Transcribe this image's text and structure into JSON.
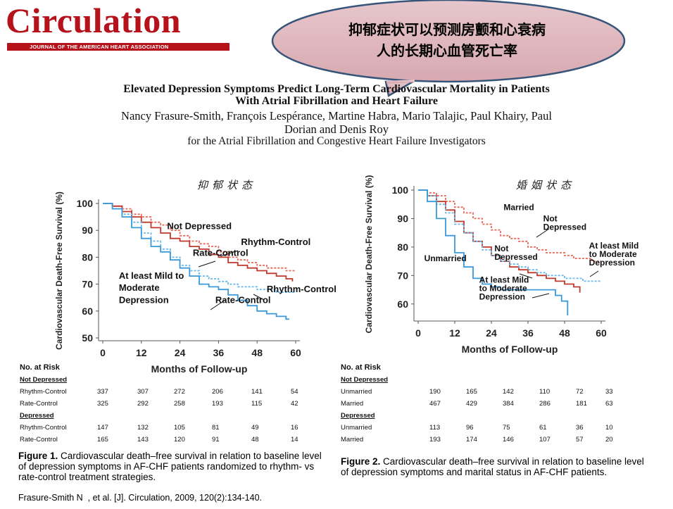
{
  "logo": {
    "word": "Circulation",
    "tagline": "JOURNAL OF THE AMERICAN HEART ASSOCIATION"
  },
  "bubble": {
    "line1": "抑郁症状可以预测房颤和心衰病",
    "line2": "人的长期心血管死亡率"
  },
  "paper": {
    "title_line1": "Elevated Depression Symptoms Predict Long-Term Cardiovascular Mortality in Patients",
    "title_line2": "With Atrial Fibrillation and Heart Failure",
    "authors_line1": "Nancy Frasure-Smith, François Lespérance, Martine Habra, Mario Talajic, Paul Khairy, Paul",
    "authors_line2": "Dorian and Denis Roy",
    "group": "for the Atrial Fibrillation and Congestive Heart Failure Investigators"
  },
  "notes": {
    "left": "抑郁状态",
    "right": "婚姻状态"
  },
  "colors": {
    "red": "#c0392b",
    "red_light": "#e8695a",
    "blue": "#3a9ad9",
    "blue_light": "#6ab8ea",
    "logo_red": "#b5121b"
  },
  "chart_data": [
    {
      "type": "line",
      "title": "Figure 1",
      "xlabel": "Months of Follow-up",
      "ylabel": "Cardiovascular Death-Free Survival (%)",
      "xlim": [
        0,
        60
      ],
      "ylim": [
        50,
        100
      ],
      "xticks": [
        0,
        12,
        24,
        36,
        48,
        60
      ],
      "yticks": [
        50,
        60,
        70,
        80,
        90,
        100
      ],
      "series": [
        {
          "name": "Not Depressed, Rhythm-Control",
          "color": "red_light",
          "dash": true,
          "x": [
            0,
            3,
            6,
            9,
            12,
            15,
            18,
            21,
            24,
            27,
            30,
            33,
            36,
            39,
            42,
            45,
            48,
            51,
            54,
            57,
            60
          ],
          "y": [
            100,
            99,
            98,
            96,
            95,
            93,
            92,
            90,
            88,
            86,
            85,
            84,
            82,
            80,
            79,
            78,
            77,
            76,
            76,
            75,
            75
          ]
        },
        {
          "name": "Not Depressed, Rate-Control",
          "color": "red",
          "dash": false,
          "x": [
            0,
            3,
            6,
            9,
            12,
            15,
            18,
            21,
            24,
            27,
            30,
            33,
            36,
            39,
            42,
            45,
            48,
            51,
            54,
            57,
            59
          ],
          "y": [
            100,
            99,
            97,
            95,
            93,
            91,
            89,
            87,
            86,
            84,
            83,
            81,
            80,
            78,
            77,
            76,
            75,
            74,
            73,
            72,
            71
          ]
        },
        {
          "name": "Depressed, Rhythm-Control",
          "color": "blue_light",
          "dash": true,
          "x": [
            0,
            3,
            6,
            9,
            12,
            15,
            18,
            21,
            24,
            27,
            30,
            33,
            36,
            39,
            42,
            45,
            48,
            51,
            54,
            57,
            60
          ],
          "y": [
            100,
            98,
            96,
            93,
            89,
            86,
            83,
            80,
            77,
            75,
            73,
            72,
            71,
            70,
            69,
            69,
            68,
            68,
            67,
            67,
            67
          ]
        },
        {
          "name": "Depressed, Rate-Control",
          "color": "blue",
          "dash": false,
          "x": [
            0,
            3,
            6,
            9,
            12,
            15,
            18,
            21,
            24,
            27,
            30,
            33,
            36,
            39,
            42,
            45,
            48,
            51,
            54,
            57,
            58
          ],
          "y": [
            100,
            98,
            95,
            91,
            87,
            84,
            82,
            79,
            76,
            73,
            70,
            69,
            68,
            66,
            64,
            62,
            60,
            59,
            58,
            57,
            57
          ]
        }
      ],
      "annotations": [
        {
          "text": "Not Depressed",
          "x": 20,
          "y": 90.5
        },
        {
          "text": "Rhythm-Control",
          "x": 43,
          "y": 84.5
        },
        {
          "text": "Rate-Control",
          "x": 28,
          "y": 80.5
        },
        {
          "text": "At least Mild to",
          "x": 5,
          "y": 72
        },
        {
          "text": "Moderate",
          "x": 5,
          "y": 67.5
        },
        {
          "text": "Depression",
          "x": 5,
          "y": 63
        },
        {
          "text": "Rhythm-Control",
          "x": 51,
          "y": 67
        },
        {
          "text": "Rate-Control",
          "x": 35,
          "y": 63
        }
      ],
      "risk_table": {
        "header": "No. at Risk",
        "groups": [
          {
            "name": "Not Depressed",
            "rows": [
              {
                "label": "Rhythm-Control",
                "values": [
                  "337",
                  "307",
                  "272",
                  "206",
                  "141",
                  "54"
                ]
              },
              {
                "label": "Rate-Control",
                "values": [
                  "325",
                  "292",
                  "258",
                  "193",
                  "115",
                  "42"
                ]
              }
            ]
          },
          {
            "name": "Depressed",
            "rows": [
              {
                "label": "Rhythm-Control",
                "values": [
                  "147",
                  "132",
                  "105",
                  "81",
                  "49",
                  "16"
                ]
              },
              {
                "label": "Rate-Control",
                "values": [
                  "165",
                  "143",
                  "120",
                  "91",
                  "48",
                  "14"
                ]
              }
            ]
          }
        ]
      },
      "caption_bold": "Figure 1.",
      "caption": "Cardiovascular death–free survival in relation to baseline level of depression symptoms in AF-CHF patients randomized to rhythm- vs rate-control treatment strategies."
    },
    {
      "type": "line",
      "title": "Figure 2",
      "xlabel": "Months of Follow-up",
      "ylabel": "Cardiovascular Death-Free Survival (%)",
      "xlim": [
        0,
        60
      ],
      "ylim": [
        55,
        100
      ],
      "xticks": [
        0,
        12,
        24,
        36,
        48,
        60
      ],
      "yticks": [
        60,
        70,
        80,
        90,
        100
      ],
      "series": [
        {
          "name": "Married, Not Depressed",
          "color": "red_light",
          "dash": true,
          "x": [
            0,
            3,
            6,
            9,
            12,
            15,
            18,
            21,
            24,
            27,
            30,
            33,
            36,
            39,
            42,
            45,
            48,
            51,
            54,
            57,
            60
          ],
          "y": [
            100,
            99,
            98,
            96,
            94,
            92,
            90,
            88,
            86,
            84,
            83,
            82,
            80,
            79,
            78,
            78,
            77,
            76,
            76,
            75,
            75
          ]
        },
        {
          "name": "Married, Depressed",
          "color": "red",
          "dash": false,
          "x": [
            0,
            3,
            6,
            9,
            12,
            15,
            18,
            21,
            24,
            27,
            30,
            33,
            36,
            39,
            42,
            45,
            48,
            51,
            53
          ],
          "y": [
            100,
            98,
            96,
            93,
            89,
            85,
            82,
            80,
            77,
            75,
            73,
            72,
            71,
            70,
            69,
            68,
            67,
            66,
            64
          ]
        },
        {
          "name": "Unmarried, Not Depressed",
          "color": "blue_light",
          "dash": true,
          "x": [
            0,
            3,
            6,
            9,
            12,
            15,
            18,
            21,
            24,
            27,
            30,
            33,
            36,
            39,
            42,
            45,
            48,
            51,
            54,
            57,
            60
          ],
          "y": [
            100,
            98,
            95,
            92,
            88,
            85,
            82,
            79,
            77,
            75,
            74,
            73,
            72,
            71,
            70,
            70,
            69,
            69,
            68,
            68,
            68
          ]
        },
        {
          "name": "Unmarried, Depressed",
          "color": "blue",
          "dash": false,
          "x": [
            0,
            3,
            6,
            9,
            12,
            15,
            18,
            21,
            24,
            27,
            30,
            33,
            36,
            39,
            42,
            45,
            47,
            49
          ],
          "y": [
            100,
            96,
            90,
            84,
            78,
            73,
            69,
            67,
            66,
            65,
            65,
            65,
            65,
            65,
            65,
            63,
            61,
            56
          ]
        }
      ],
      "annotations": [
        {
          "text": "Married",
          "x": 28,
          "y": 93
        },
        {
          "text": "Not",
          "x": 41,
          "y": 89
        },
        {
          "text": "Depressed",
          "x": 41,
          "y": 86
        },
        {
          "text": "At least Mild",
          "x": 56,
          "y": 79.5
        },
        {
          "text": "to Moderate",
          "x": 56,
          "y": 76.5
        },
        {
          "text": "Depression",
          "x": 56,
          "y": 73.5
        },
        {
          "text": "Unmarried",
          "x": 2,
          "y": 75
        },
        {
          "text": "Not",
          "x": 25,
          "y": 78.5
        },
        {
          "text": "Depressed",
          "x": 25,
          "y": 75.5
        },
        {
          "text": "At least Mild",
          "x": 20,
          "y": 67.5
        },
        {
          "text": "to Moderate",
          "x": 20,
          "y": 64.5
        },
        {
          "text": "Depression",
          "x": 20,
          "y": 61.5
        }
      ],
      "risk_table": {
        "header": "No. at Risk",
        "groups": [
          {
            "name": "Not Depressed",
            "rows": [
              {
                "label": "Unmarried",
                "values": [
                  "190",
                  "165",
                  "142",
                  "110",
                  "72",
                  "33"
                ]
              },
              {
                "label": "Married",
                "values": [
                  "467",
                  "429",
                  "384",
                  "286",
                  "181",
                  "63"
                ]
              }
            ]
          },
          {
            "name": "Depressed",
            "rows": [
              {
                "label": "Unmarried",
                "values": [
                  "113",
                  "96",
                  "75",
                  "61",
                  "36",
                  "10"
                ]
              },
              {
                "label": "Married",
                "values": [
                  "193",
                  "174",
                  "146",
                  "107",
                  "57",
                  "20"
                ]
              }
            ]
          }
        ]
      },
      "caption_bold": "Figure 2.",
      "caption": "Cardiovascular death–free survival in relation to baseline level of depression symptoms and marital status in AF-CHF patients."
    }
  ],
  "citation": "Frasure-Smith N  , et al. [J]. Circulation, 2009, 120(2):134-140."
}
